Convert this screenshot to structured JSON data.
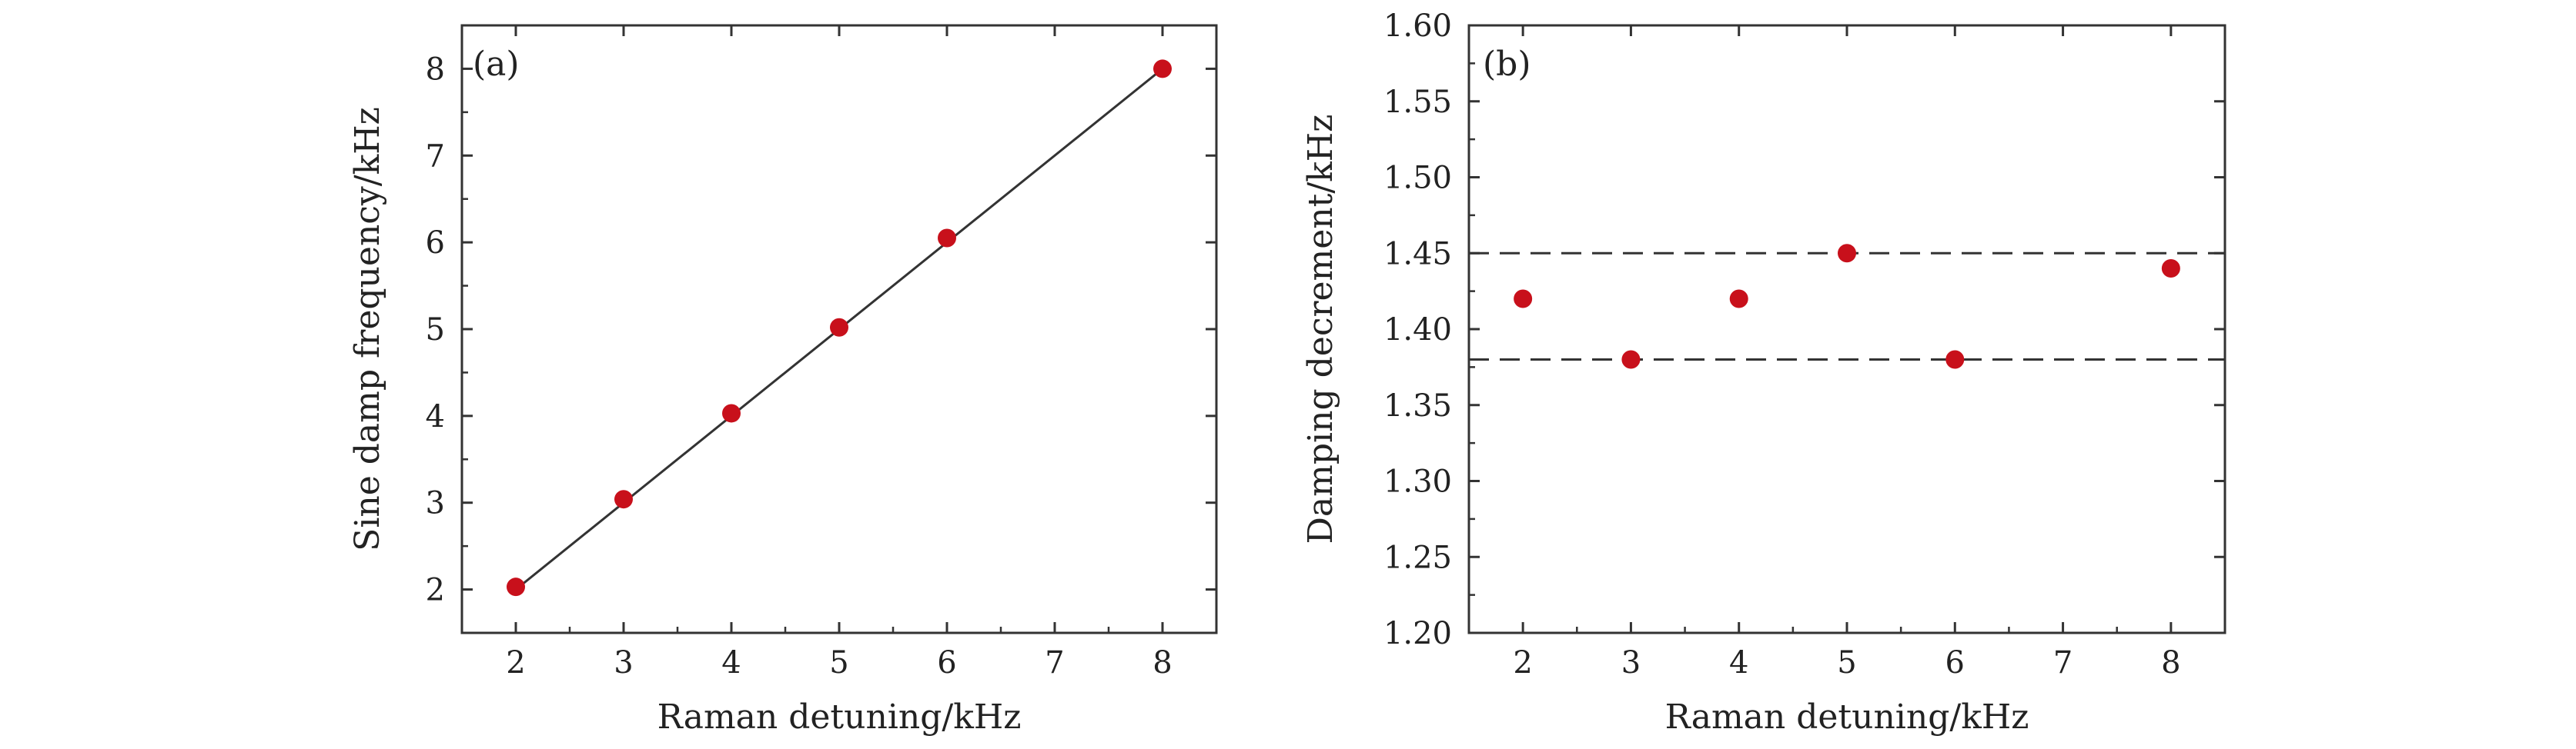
{
  "figure": {
    "background": "#ffffff",
    "marker_color": "#c8101b",
    "line_color": "#333333"
  },
  "chart_data": [
    {
      "type": "scatter",
      "panel_label": "(a)",
      "xlabel": "Raman detuning/kHz",
      "ylabel": "Sine damp frequency/kHz",
      "xlim": [
        1.5,
        8.5
      ],
      "ylim": [
        1.5,
        8.5
      ],
      "xticks": [
        2,
        3,
        4,
        5,
        6,
        7,
        8
      ],
      "yticks": [
        2,
        3,
        4,
        5,
        6,
        7,
        8
      ],
      "grid": false,
      "series": [
        {
          "kind": "points",
          "x": [
            2,
            3,
            4,
            5,
            6,
            8
          ],
          "y": [
            2.03,
            3.04,
            4.03,
            5.02,
            6.05,
            8.0
          ]
        },
        {
          "kind": "fit-line",
          "x": [
            2,
            8
          ],
          "y": [
            2.0,
            8.0
          ]
        }
      ]
    },
    {
      "type": "scatter",
      "panel_label": "(b)",
      "xlabel": "Raman detuning/kHz",
      "ylabel": "Damping decrement/kHz",
      "xlim": [
        1.5,
        8.5
      ],
      "ylim": [
        1.2,
        1.6
      ],
      "xticks": [
        2,
        3,
        4,
        5,
        6,
        7,
        8
      ],
      "yticks": [
        1.2,
        1.25,
        1.3,
        1.35,
        1.4,
        1.45,
        1.5,
        1.55,
        1.6
      ],
      "ytick_labels": [
        "1.20",
        "1.25",
        "1.30",
        "1.35",
        "1.40",
        "1.45",
        "1.50",
        "1.55",
        "1.60"
      ],
      "grid": false,
      "series": [
        {
          "kind": "points",
          "x": [
            2,
            3,
            4,
            5,
            6,
            8
          ],
          "y": [
            1.42,
            1.38,
            1.42,
            1.45,
            1.38,
            1.44
          ]
        }
      ],
      "reference_lines": [
        {
          "orientation": "horizontal",
          "y": 1.45,
          "style": "dashed"
        },
        {
          "orientation": "horizontal",
          "y": 1.38,
          "style": "dashed"
        }
      ]
    }
  ]
}
